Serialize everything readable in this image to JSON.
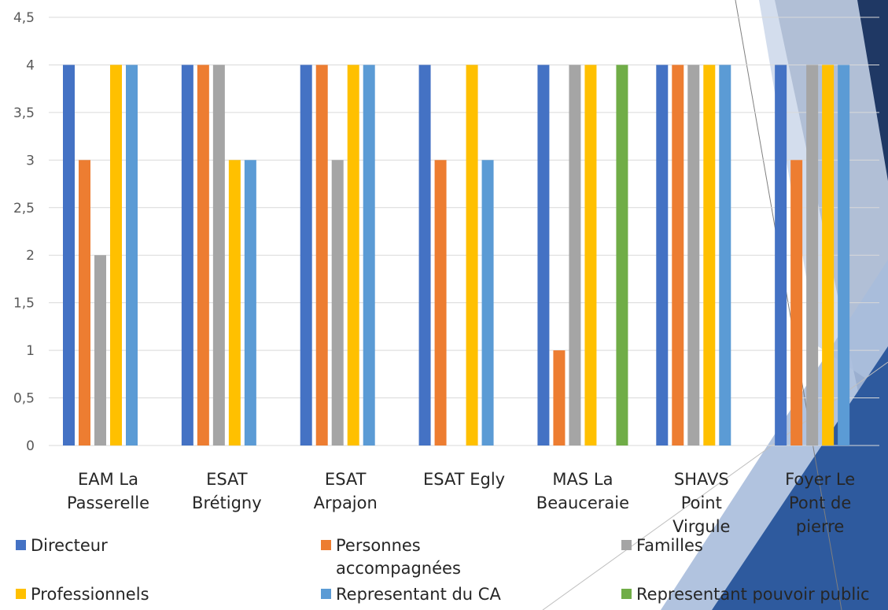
{
  "chart_data": {
    "type": "bar",
    "title": "",
    "xlabel": "",
    "ylabel": "",
    "ylim": [
      0,
      4.5
    ],
    "yticks": [
      "0",
      "0,5",
      "1",
      "1,5",
      "2",
      "2,5",
      "3",
      "3,5",
      "4",
      "4,5"
    ],
    "grid": true,
    "legend_position": "bottom",
    "categories": [
      [
        "EAM La",
        "Passerelle"
      ],
      [
        "ESAT",
        "Brétigny"
      ],
      [
        "ESAT",
        "Arpajon"
      ],
      [
        "ESAT Egly"
      ],
      [
        "MAS La",
        "Beauceraie"
      ],
      [
        "SHAVS",
        "Point",
        "Virgule"
      ],
      [
        "Foyer Le",
        "Pont de",
        "pierre"
      ]
    ],
    "series": [
      {
        "name": "Directeur",
        "color": "#4472C4",
        "values": [
          4,
          4,
          4,
          4,
          4,
          4,
          4
        ]
      },
      {
        "name": "Personnes accompagnées",
        "legend_lines": [
          "Personnes",
          "accompagnées"
        ],
        "color": "#ED7D31",
        "values": [
          3,
          4,
          4,
          3,
          1,
          4,
          3
        ]
      },
      {
        "name": "Familles",
        "color": "#A5A5A5",
        "values": [
          2,
          4,
          3,
          null,
          4,
          4,
          4
        ]
      },
      {
        "name": "Professionnels",
        "color": "#FFC000",
        "values": [
          4,
          3,
          4,
          4,
          4,
          4,
          4
        ]
      },
      {
        "name": "Representant du CA",
        "color": "#5B9BD5",
        "values": [
          4,
          3,
          4,
          3,
          null,
          4,
          4
        ]
      },
      {
        "name": "Representant pouvoir public",
        "color": "#70AD47",
        "values": [
          null,
          null,
          null,
          null,
          4,
          null,
          null
        ]
      }
    ]
  },
  "slide_colors": {
    "navy": "#1F3864",
    "blue": "#2E5A9E",
    "light": "#A9BCDB",
    "pale": "#CBD7EA"
  }
}
